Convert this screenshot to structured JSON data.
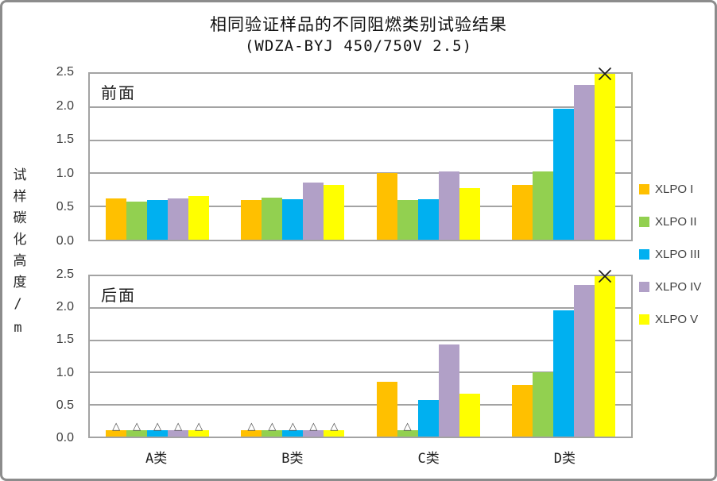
{
  "title": "相同验证样品的不同阻燃类别试验结果",
  "subtitle": "(WDZA-BYJ 450/750V 2.5)",
  "y_axis_label": "试样碳化高度/m",
  "icons": {
    "triangle_marker": "△",
    "x_marker": "x-cross"
  },
  "chart_data": [
    {
      "type": "bar",
      "panel_label": "前面",
      "categories": [
        "A类",
        "B类",
        "C类",
        "D类"
      ],
      "yticks": [
        "2.5",
        "2.0",
        "1.5",
        "1.0",
        "0.5",
        "0.0"
      ],
      "ylim": [
        0,
        2.5
      ],
      "grid": true,
      "legend_position": "right",
      "series": [
        {
          "name": "XLPO I",
          "color": "#FFC000",
          "values": [
            0.62,
            0.6,
            1.0,
            0.83
          ],
          "markers": [
            "",
            "",
            "",
            ""
          ]
        },
        {
          "name": "XLPO II",
          "color": "#92D050",
          "values": [
            0.58,
            0.64,
            0.6,
            1.03
          ],
          "markers": [
            "",
            "",
            "",
            ""
          ]
        },
        {
          "name": "XLPO III",
          "color": "#00B0F0",
          "values": [
            0.6,
            0.61,
            0.61,
            1.97
          ],
          "markers": [
            "",
            "",
            "",
            ""
          ]
        },
        {
          "name": "XLPO IV",
          "color": "#B1A0C7",
          "values": [
            0.62,
            0.86,
            1.03,
            2.33
          ],
          "markers": [
            "",
            "",
            "",
            ""
          ]
        },
        {
          "name": "XLPO V",
          "color": "#FFFF00",
          "values": [
            0.66,
            0.82,
            0.78,
            2.5
          ],
          "markers": [
            "",
            "",
            "",
            "x"
          ]
        }
      ]
    },
    {
      "type": "bar",
      "panel_label": "后面",
      "categories": [
        "A类",
        "B类",
        "C类",
        "D类"
      ],
      "yticks": [
        "2.5",
        "2.0",
        "1.5",
        "1.0",
        "0.5",
        "0.0"
      ],
      "ylim": [
        0,
        2.5
      ],
      "grid": true,
      "legend_position": "right",
      "series": [
        {
          "name": "XLPO I",
          "color": "#FFC000",
          "values": [
            0.1,
            0.1,
            0.85,
            0.81
          ],
          "markers": [
            "t",
            "t",
            "",
            ""
          ]
        },
        {
          "name": "XLPO II",
          "color": "#92D050",
          "values": [
            0.1,
            0.1,
            0.1,
            1.0
          ],
          "markers": [
            "t",
            "t",
            "t",
            ""
          ]
        },
        {
          "name": "XLPO III",
          "color": "#00B0F0",
          "values": [
            0.1,
            0.1,
            0.57,
            1.97
          ],
          "markers": [
            "t",
            "t",
            "",
            ""
          ]
        },
        {
          "name": "XLPO IV",
          "color": "#B1A0C7",
          "values": [
            0.1,
            0.1,
            1.44,
            2.36
          ],
          "markers": [
            "t",
            "t",
            "",
            ""
          ]
        },
        {
          "name": "XLPO V",
          "color": "#FFFF00",
          "values": [
            0.1,
            0.1,
            0.67,
            2.5
          ],
          "markers": [
            "t",
            "t",
            "",
            "x"
          ]
        }
      ]
    }
  ]
}
